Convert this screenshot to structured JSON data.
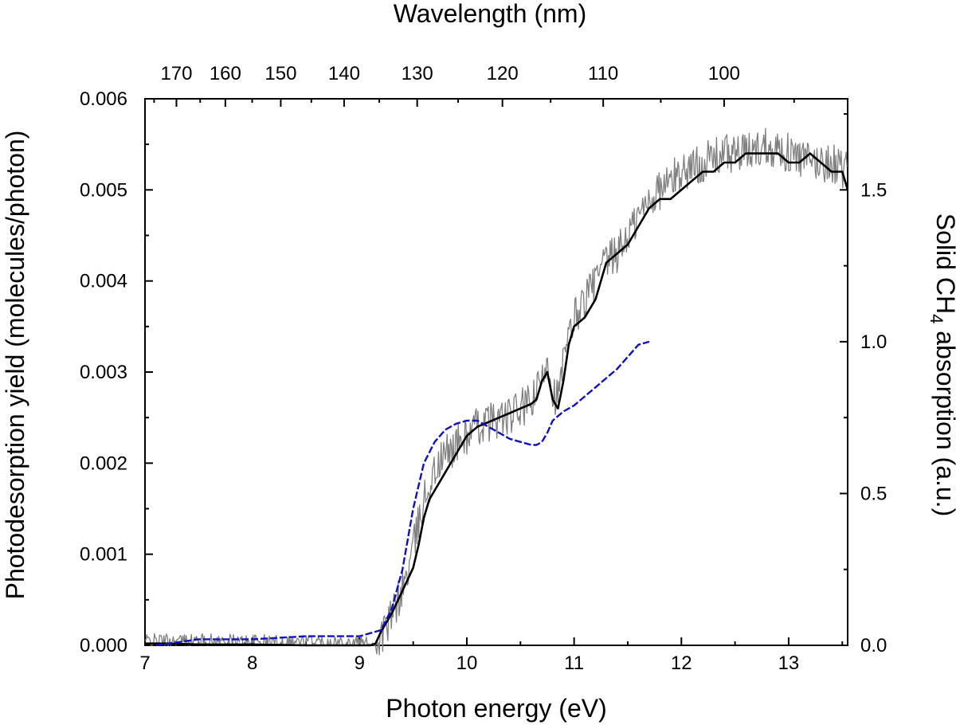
{
  "chart_data": {
    "type": "line",
    "title": "",
    "xlabel": "Photon energy (eV)",
    "ylabel": "Photodesorption yield (molecules/photon)",
    "top_xlabel": "Wavelength (nm)",
    "right_ylabel_prefix": "Solid CH",
    "right_ylabel_subscript": "4",
    "right_ylabel_suffix": " absorption (a.u.)",
    "xlim": [
      7.0,
      13.55
    ],
    "ylim": [
      0.0,
      0.006
    ],
    "y2lim": [
      0.0,
      1.8
    ],
    "x_ticks": [
      "7",
      "8",
      "9",
      "10",
      "11",
      "12",
      "13"
    ],
    "y_ticks": [
      "0.000",
      "0.001",
      "0.002",
      "0.003",
      "0.004",
      "0.005",
      "0.006"
    ],
    "y2_ticks": [
      "0.0",
      "0.5",
      "1.0",
      "1.5"
    ],
    "top_ticks": [
      "170",
      "160",
      "150",
      "140",
      "130",
      "120",
      "110",
      "100"
    ],
    "grid": false,
    "colors": {
      "raw": "#808080",
      "smoothed": "#000000",
      "absorption": "#1010cc",
      "axis": "#000000"
    },
    "series": [
      {
        "name": "Photodesorption yield (raw)",
        "axis": "left",
        "style": "noisy-thin",
        "x": [
          7.0,
          7.5,
          8.0,
          8.5,
          9.0,
          9.15,
          9.3,
          9.45,
          9.6,
          9.7,
          9.8,
          9.9,
          10.0,
          10.1,
          10.2,
          10.3,
          10.4,
          10.5,
          10.6,
          10.7,
          10.75,
          10.8,
          10.85,
          10.9,
          11.0,
          11.1,
          11.2,
          11.3,
          11.4,
          11.5,
          11.6,
          11.7,
          11.8,
          11.9,
          12.0,
          12.2,
          12.4,
          12.6,
          12.8,
          13.0,
          13.2,
          13.4,
          13.55
        ],
        "y": [
          5e-05,
          5e-05,
          4e-05,
          4e-05,
          3e-05,
          0.0,
          0.0003,
          0.0008,
          0.0016,
          0.0019,
          0.0021,
          0.0022,
          0.0023,
          0.0024,
          0.00245,
          0.0025,
          0.0025,
          0.0026,
          0.00265,
          0.0029,
          0.0032,
          0.0028,
          0.0027,
          0.0031,
          0.0036,
          0.0038,
          0.004,
          0.0042,
          0.0043,
          0.0045,
          0.0047,
          0.0049,
          0.005,
          0.0051,
          0.0052,
          0.0053,
          0.0054,
          0.0054,
          0.0055,
          0.0054,
          0.0053,
          0.0053,
          0.0052
        ]
      },
      {
        "name": "Photodesorption yield (smoothed)",
        "axis": "left",
        "style": "solid",
        "x": [
          7.0,
          7.2,
          7.5,
          8.0,
          8.5,
          9.0,
          9.1,
          9.15,
          9.2,
          9.3,
          9.4,
          9.5,
          9.55,
          9.6,
          9.65,
          9.7,
          9.8,
          9.9,
          10.0,
          10.05,
          10.1,
          10.2,
          10.3,
          10.4,
          10.5,
          10.6,
          10.65,
          10.7,
          10.75,
          10.8,
          10.85,
          10.9,
          10.95,
          11.0,
          11.1,
          11.2,
          11.3,
          11.4,
          11.5,
          11.6,
          11.7,
          11.8,
          11.9,
          12.0,
          12.1,
          12.2,
          12.3,
          12.4,
          12.5,
          12.6,
          12.7,
          12.8,
          12.9,
          13.0,
          13.1,
          13.2,
          13.3,
          13.4,
          13.5,
          13.55
        ],
        "y": [
          2e-05,
          2e-05,
          1e-05,
          1e-05,
          0.0,
          0.0,
          0.0,
          2e-05,
          0.00015,
          0.00035,
          0.0006,
          0.00085,
          0.0011,
          0.0014,
          0.0016,
          0.0017,
          0.0019,
          0.0021,
          0.0023,
          0.00235,
          0.0024,
          0.00245,
          0.0025,
          0.00255,
          0.0026,
          0.00265,
          0.0027,
          0.0029,
          0.003,
          0.0027,
          0.0026,
          0.0029,
          0.0033,
          0.0035,
          0.0036,
          0.0038,
          0.0042,
          0.0043,
          0.0044,
          0.0046,
          0.0048,
          0.0049,
          0.0049,
          0.005,
          0.0051,
          0.0052,
          0.0052,
          0.0053,
          0.0053,
          0.0054,
          0.0054,
          0.0054,
          0.0054,
          0.0053,
          0.0053,
          0.0054,
          0.0053,
          0.0052,
          0.0052,
          0.005
        ]
      },
      {
        "name": "Solid CH4 absorption",
        "axis": "right",
        "style": "dashed",
        "x": [
          7.1,
          7.5,
          8.0,
          8.5,
          9.0,
          9.2,
          9.3,
          9.4,
          9.5,
          9.6,
          9.7,
          9.8,
          9.9,
          10.0,
          10.1,
          10.2,
          10.3,
          10.4,
          10.5,
          10.6,
          10.65,
          10.7,
          10.75,
          10.8,
          10.9,
          11.0,
          11.1,
          11.2,
          11.3,
          11.4,
          11.5,
          11.6,
          11.7
        ],
        "y": [
          0.0,
          0.02,
          0.02,
          0.03,
          0.03,
          0.05,
          0.12,
          0.25,
          0.45,
          0.6,
          0.67,
          0.71,
          0.73,
          0.74,
          0.74,
          0.72,
          0.7,
          0.68,
          0.67,
          0.66,
          0.66,
          0.67,
          0.7,
          0.74,
          0.77,
          0.79,
          0.82,
          0.85,
          0.88,
          0.91,
          0.95,
          0.99,
          1.0
        ]
      }
    ]
  }
}
